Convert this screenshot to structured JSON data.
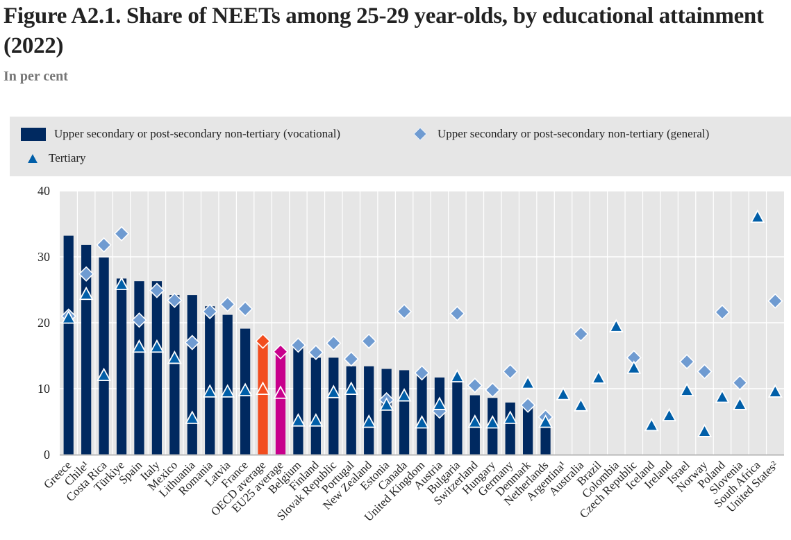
{
  "header": {
    "title": "Figure A2.1. Share of NEETs among 25-29 year-olds, by educational attainment (2022)",
    "subtitle": "In per cent"
  },
  "legend": {
    "vocational": "Upper secondary or post-secondary non-tertiary (vocational)",
    "general": "Upper secondary or post-secondary non-tertiary (general)",
    "tertiary": "Tertiary"
  },
  "colors": {
    "vocational": "#002960",
    "general": "#6f9bd1",
    "tertiary": "#005ea8",
    "oecd_average": "#f24d1f",
    "eu25_average": "#c8008c",
    "plot_background": "#e6e6e6"
  },
  "chart_data": {
    "type": "bar",
    "title": "Figure A2.1. Share of NEETs among 25-29 year-olds, by educational attainment (2022)",
    "subtitle": "In per cent",
    "xlabel": "",
    "ylabel": "",
    "ylim": [
      0,
      40
    ],
    "yticks": [
      0,
      10,
      20,
      30,
      40
    ],
    "grid": true,
    "legend_position": "top",
    "categories": [
      "Greece",
      "Chile¹",
      "Costa Rica",
      "Türkiye",
      "Spain",
      "Italy",
      "Mexico",
      "Lithuania",
      "Romania",
      "Latvia",
      "France",
      "OECD average",
      "EU25 average",
      "Belgium",
      "Finland",
      "Slovak Republic",
      "Portugal",
      "New Zealand",
      "Estonia",
      "Canada",
      "United Kingdom",
      "Austria",
      "Bulgaria",
      "Switzerland",
      "Hungary",
      "Germany",
      "Denmark",
      "Netherlands",
      "Argentina¹",
      "Australia",
      "Brazil",
      "Colombia",
      "Czech Republic",
      "Iceland",
      "Ireland",
      "Israel",
      "Norway",
      "Poland",
      "Slovenia",
      "South Africa",
      "United States²"
    ],
    "highlight": {
      "OECD average": "#f24d1f",
      "EU25 average": "#c8008c"
    },
    "series": [
      {
        "name": "Upper secondary or post-secondary non-tertiary (vocational)",
        "type": "bar",
        "values": [
          33.2,
          31.8,
          29.9,
          26.7,
          26.3,
          26.3,
          24.2,
          24.2,
          22.5,
          21.2,
          19.1,
          17.2,
          15.6,
          16.2,
          14.7,
          14.7,
          13.4,
          13.4,
          13.0,
          12.8,
          12.0,
          11.7,
          11.0,
          9.0,
          8.6,
          7.9,
          7.2,
          4.7,
          null,
          null,
          null,
          null,
          null,
          null,
          null,
          null,
          null,
          null,
          null,
          null,
          null
        ]
      },
      {
        "name": "Upper secondary or post-secondary non-tertiary (general)",
        "type": "diamond",
        "values": [
          21.0,
          27.4,
          31.8,
          33.5,
          20.4,
          24.9,
          23.4,
          17.0,
          21.7,
          22.8,
          22.1,
          17.2,
          15.6,
          16.6,
          15.5,
          16.9,
          14.5,
          17.2,
          8.3,
          21.7,
          12.4,
          6.6,
          21.4,
          10.5,
          9.8,
          12.6,
          7.5,
          5.7,
          null,
          18.3,
          null,
          null,
          14.7,
          null,
          null,
          14.1,
          12.6,
          21.6,
          10.9,
          null,
          23.3
        ]
      },
      {
        "name": "Tertiary",
        "type": "triangle",
        "values": [
          20.7,
          24.3,
          12.0,
          25.8,
          16.3,
          16.3,
          14.6,
          5.5,
          9.5,
          9.5,
          9.7,
          9.9,
          9.3,
          5.1,
          5.1,
          9.4,
          9.9,
          4.9,
          7.5,
          8.9,
          4.8,
          7.6,
          11.8,
          4.9,
          4.8,
          5.5,
          10.8,
          4.9,
          9.1,
          7.4,
          11.6,
          19.4,
          13.1,
          4.4,
          5.9,
          9.7,
          3.5,
          8.7,
          7.6,
          36.0,
          9.5
        ]
      }
    ]
  }
}
